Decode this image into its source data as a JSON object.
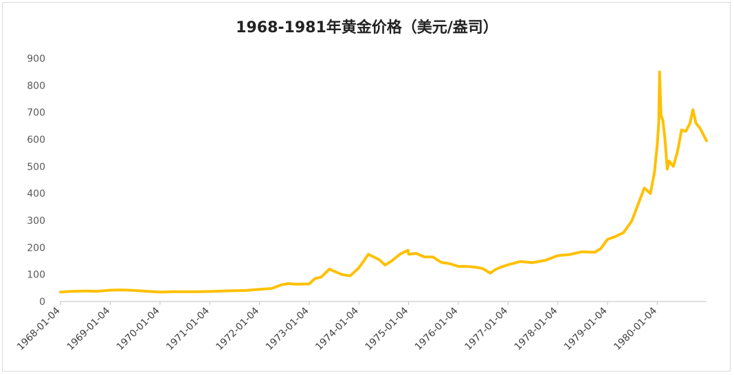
{
  "chart_data": {
    "type": "line",
    "title": "1968-1981年黄金价格（美元/盎司）",
    "xlabel": "",
    "ylabel": "",
    "ylim": [
      0,
      900
    ],
    "yticks": [
      "0",
      "100",
      "200",
      "300",
      "400",
      "500",
      "600",
      "700",
      "800",
      "900"
    ],
    "x_ticks": [
      "1968-01-04",
      "1969-01-04",
      "1970-01-04",
      "1971-01-04",
      "1972-01-04",
      "1973-01-04",
      "1974-01-04",
      "1975-01-04",
      "1976-01-04",
      "1977-01-04",
      "1978-01-04",
      "1979-01-04",
      "1980-01-04"
    ],
    "grid": false,
    "legend": "none",
    "color": "#FFC000",
    "series": [
      {
        "x": [
          "1968-01-04",
          "1968-04-01",
          "1968-07-01",
          "1968-10-01",
          "1969-01-04",
          "1969-04-01",
          "1969-07-01",
          "1969-10-01",
          "1970-01-04",
          "1970-04-01",
          "1970-07-01",
          "1970-10-01",
          "1971-01-04",
          "1971-04-01",
          "1971-07-01",
          "1971-10-01",
          "1972-01-04",
          "1972-04-01",
          "1972-06-15",
          "1972-08-01",
          "1972-10-01",
          "1973-01-04",
          "1973-02-15",
          "1973-04-01",
          "1973-06-01",
          "1973-07-15",
          "1973-09-01",
          "1973-11-01",
          "1974-01-04",
          "1974-02-15",
          "1974-03-15",
          "1974-04-01",
          "1974-06-01",
          "1974-07-15",
          "1974-09-01",
          "1974-11-01",
          "1974-12-30",
          "1975-01-04",
          "1975-03-01",
          "1975-05-01",
          "1975-07-01",
          "1975-09-01",
          "1975-11-01",
          "1976-01-04",
          "1976-03-01",
          "1976-05-01",
          "1976-07-01",
          "1976-08-25",
          "1976-10-01",
          "1976-11-15",
          "1977-01-04",
          "1977-04-01",
          "1977-07-01",
          "1977-10-01",
          "1978-01-04",
          "1978-04-01",
          "1978-07-01",
          "1978-10-01",
          "1978-11-15",
          "1979-01-04",
          "1979-03-01",
          "1979-05-01",
          "1979-07-01",
          "1979-09-01",
          "1979-10-01",
          "1979-11-15",
          "1979-12-15",
          "1980-01-04",
          "1980-01-15",
          "1980-01-21",
          "1980-02-01",
          "1980-02-15",
          "1980-03-01",
          "1980-03-18",
          "1980-04-01",
          "1980-05-01",
          "1980-06-01",
          "1980-07-01",
          "1980-08-01",
          "1980-09-01",
          "1980-09-22",
          "1980-10-15",
          "1980-11-15",
          "1980-12-31"
        ],
        "values": [
          35,
          38,
          39,
          38,
          42,
          43,
          41,
          38,
          35,
          36,
          36,
          36,
          37,
          39,
          40,
          41,
          45,
          48,
          62,
          66,
          64,
          65,
          85,
          90,
          120,
          110,
          100,
          95,
          125,
          155,
          175,
          170,
          155,
          135,
          150,
          175,
          190,
          175,
          178,
          165,
          165,
          145,
          140,
          130,
          130,
          128,
          122,
          105,
          118,
          128,
          136,
          148,
          144,
          152,
          170,
          174,
          184,
          182,
          196,
          230,
          240,
          255,
          298,
          380,
          420,
          400,
          480,
          580,
          660,
          850,
          690,
          670,
          600,
          490,
          520,
          500,
          555,
          635,
          630,
          660,
          710,
          660,
          640,
          595
        ]
      }
    ]
  }
}
